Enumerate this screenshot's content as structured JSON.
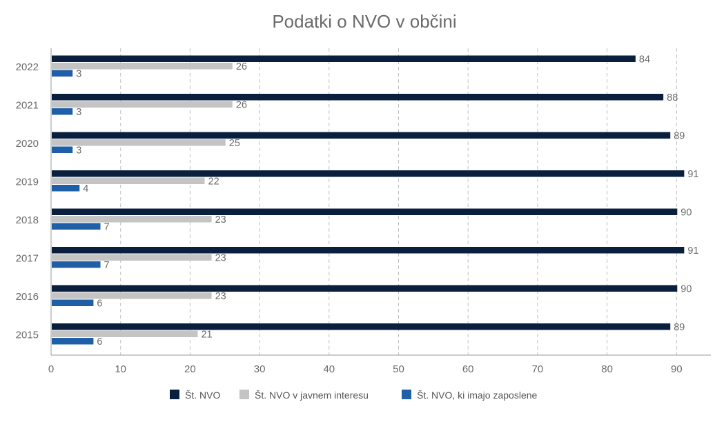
{
  "chart_data": {
    "type": "bar",
    "orientation": "horizontal",
    "title": "Podatki o NVO v občini",
    "categories": [
      "2022",
      "2021",
      "2020",
      "2019",
      "2018",
      "2017",
      "2016",
      "2015"
    ],
    "series": [
      {
        "name": "Št. NVO",
        "color": "#0a1f3d",
        "values": [
          84,
          88,
          89,
          91,
          90,
          91,
          90,
          89
        ]
      },
      {
        "name": "Št. NVO v javnem interesu",
        "color": "#c4c4c4",
        "values": [
          26,
          26,
          25,
          22,
          23,
          23,
          23,
          21
        ]
      },
      {
        "name": "Št. NVO, ki imajo zaposlene",
        "color": "#1f5fa8",
        "values": [
          3,
          3,
          3,
          4,
          7,
          7,
          6,
          6
        ]
      }
    ],
    "x_ticks": [
      "0",
      "10",
      "20",
      "30",
      "40",
      "50",
      "60",
      "70",
      "80",
      "90"
    ],
    "xlim": [
      0,
      95
    ],
    "grid": "vertical dashed",
    "legend": "bottom-center",
    "data_labels": true
  }
}
